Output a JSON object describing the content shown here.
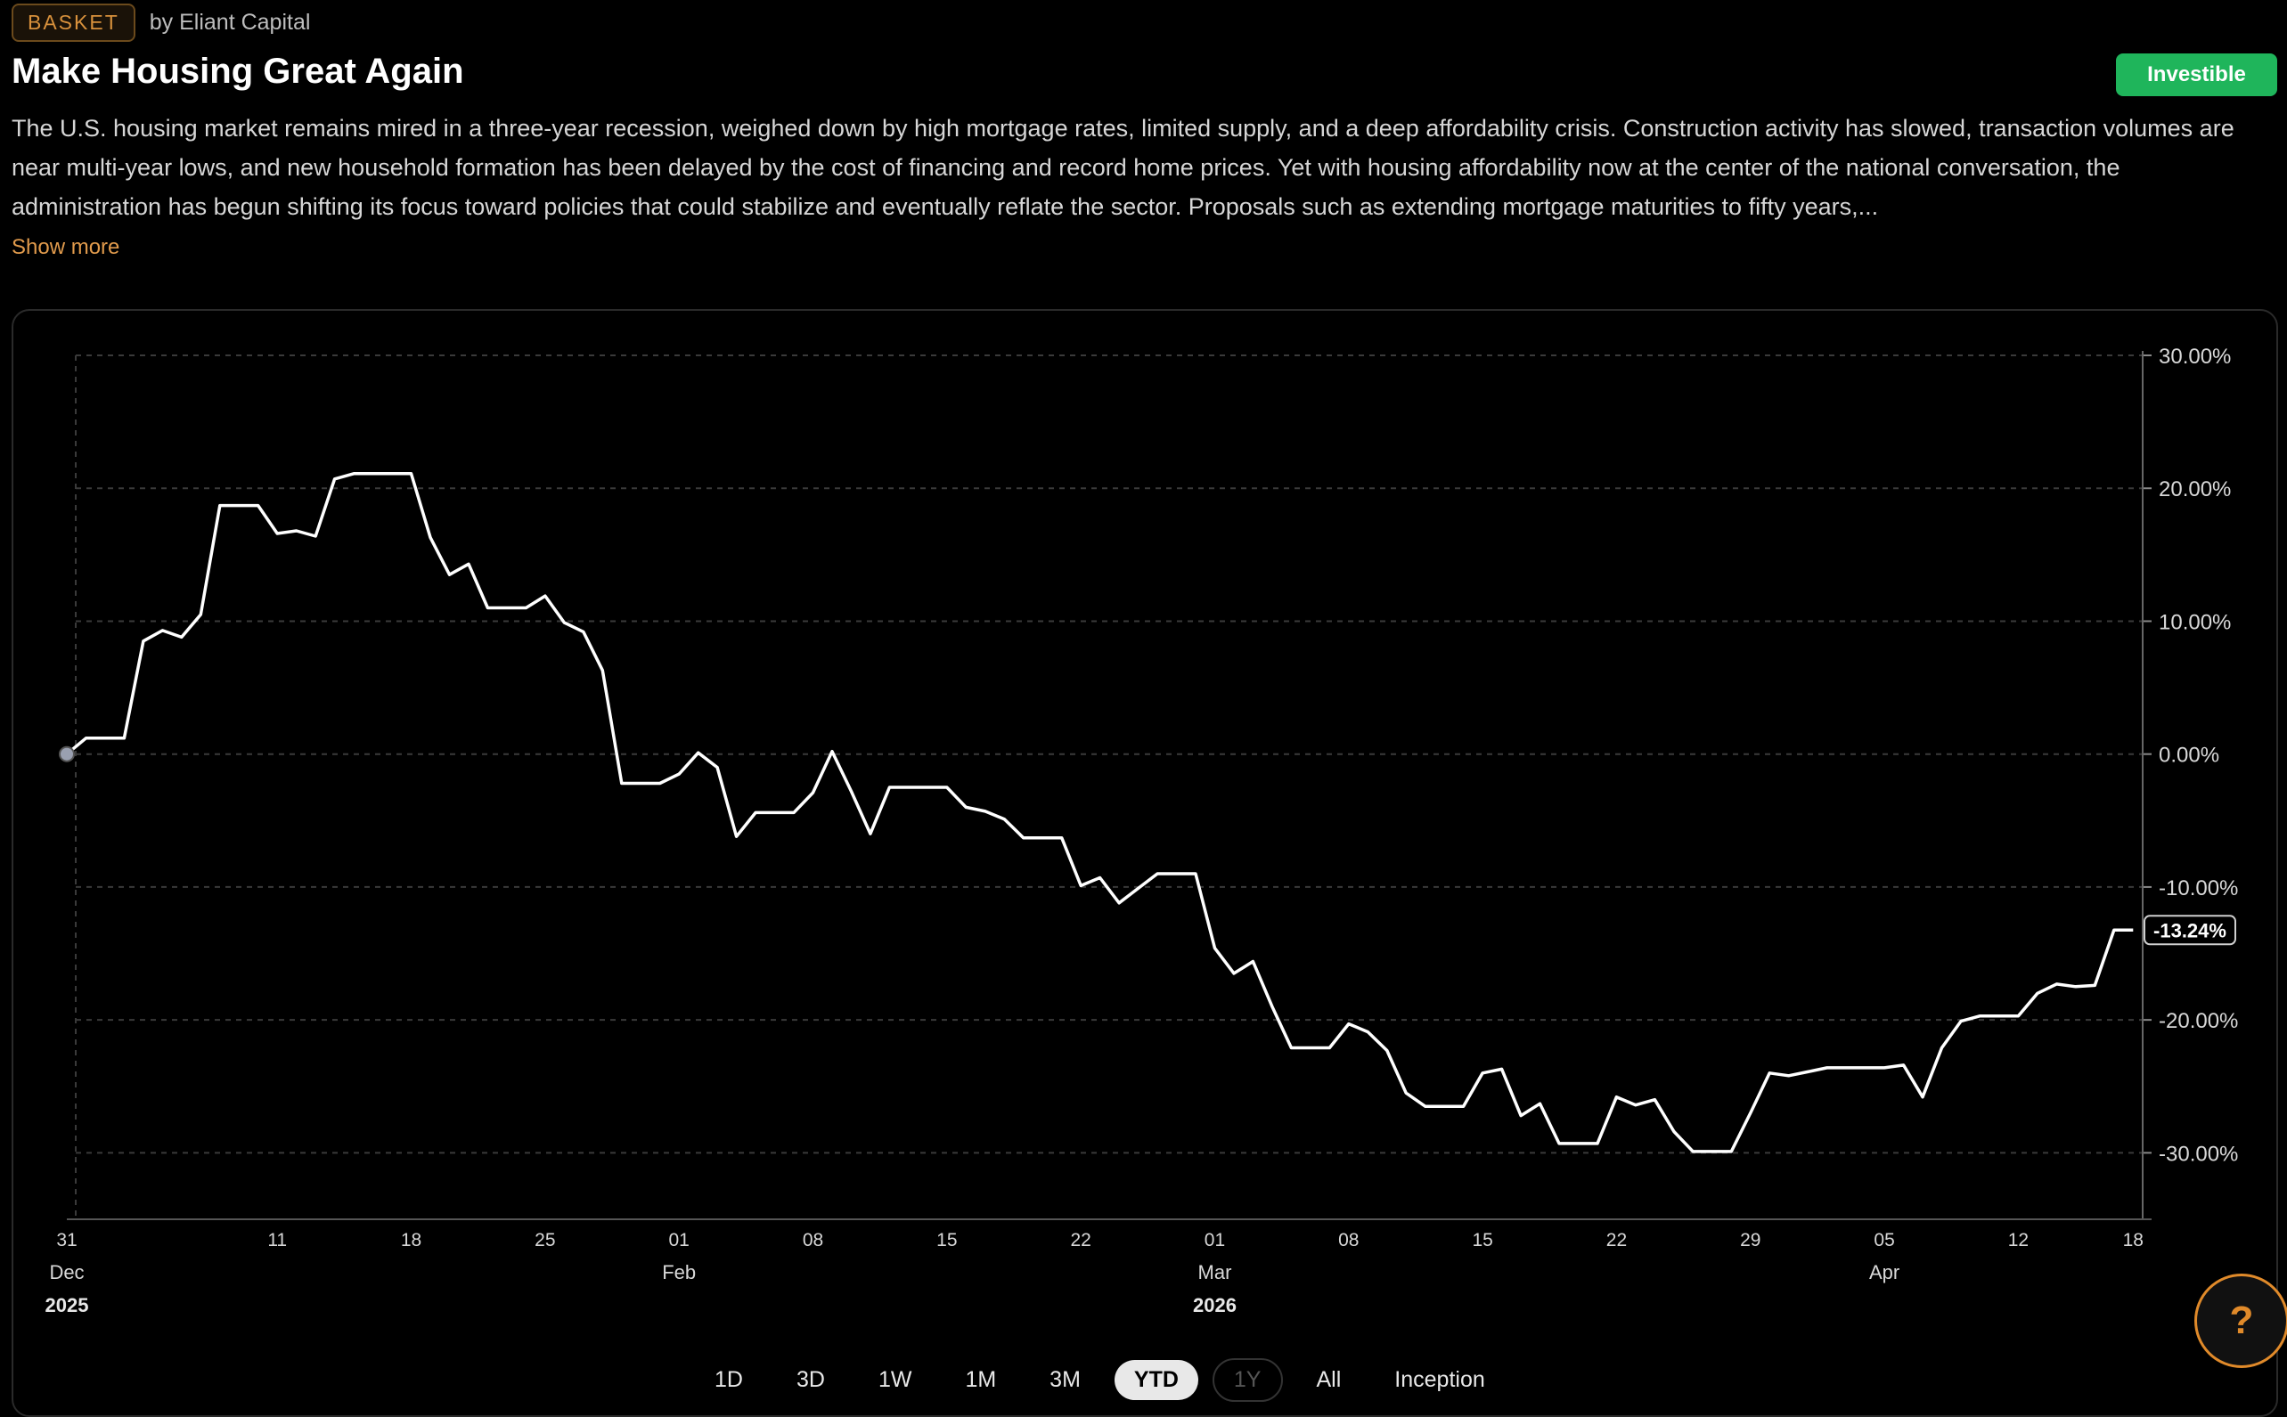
{
  "header": {
    "tag": "BASKET",
    "byline": "by Eliant Capital",
    "title": "Make Housing Great Again",
    "status_button": "Investible",
    "description": "The U.S. housing market remains mired in a three-year recession, weighed down by high mortgage rates, limited supply, and a deep affordability crisis. Construction activity has slowed, transaction volumes are near multi-year lows, and new household formation has been delayed by the cost of financing and record home prices. Yet with housing affordability now at the center of the national conversation, the administration has begun shifting its focus toward policies that could stabilize and eventually reflate the sector. Proposals such as extending mortgage maturities to fifty years,...",
    "show_more": "Show more"
  },
  "range_selector": {
    "options": [
      {
        "label": "1D",
        "state": "normal"
      },
      {
        "label": "3D",
        "state": "normal"
      },
      {
        "label": "1W",
        "state": "normal"
      },
      {
        "label": "1M",
        "state": "normal"
      },
      {
        "label": "3M",
        "state": "normal"
      },
      {
        "label": "YTD",
        "state": "active"
      },
      {
        "label": "1Y",
        "state": "disabled"
      },
      {
        "label": "All",
        "state": "normal"
      },
      {
        "label": "Inception",
        "state": "normal"
      }
    ]
  },
  "help_button": "?",
  "colors": {
    "line": "#ffffff",
    "accent": "#e08a2a",
    "investible": "#1fb55b",
    "grid": "#3a3a3a"
  },
  "chart_data": {
    "type": "line",
    "y_axis_position": "right",
    "y_format": "percent",
    "ylim": [
      -35,
      30
    ],
    "yticks": [
      "30.00%",
      "20.00%",
      "10.00%",
      "0.00%",
      "-10.00%",
      "-20.00%",
      "-30.00%"
    ],
    "ytick_values": [
      30,
      20,
      10,
      0,
      -10,
      -20,
      -30
    ],
    "grid": true,
    "current_value_label": "-13.24%",
    "x_ticks": [
      {
        "day": "31",
        "month": "Dec",
        "year": "2025",
        "day_index": 0
      },
      {
        "day": "11",
        "day_index": 11
      },
      {
        "day": "18",
        "day_index": 18
      },
      {
        "day": "25",
        "day_index": 25
      },
      {
        "day": "01",
        "month": "Feb",
        "day_index": 32
      },
      {
        "day": "08",
        "day_index": 39
      },
      {
        "day": "15",
        "day_index": 46
      },
      {
        "day": "22",
        "day_index": 53
      },
      {
        "day": "01",
        "month": "Mar",
        "year": "2026",
        "day_index": 60
      },
      {
        "day": "08",
        "day_index": 67
      },
      {
        "day": "15",
        "day_index": 74
      },
      {
        "day": "22",
        "day_index": 81
      },
      {
        "day": "29",
        "day_index": 88
      },
      {
        "day": "05",
        "month": "Apr",
        "day_index": 95
      },
      {
        "day": "12",
        "day_index": 102
      },
      {
        "day": "18",
        "day_index": 108
      }
    ],
    "xlim": [
      0,
      108.5
    ],
    "series": [
      {
        "values": [
          [
            0,
            0
          ],
          [
            1,
            1.2
          ],
          [
            2,
            1.2
          ],
          [
            3,
            1.2
          ],
          [
            4,
            8.5
          ],
          [
            5,
            9.3
          ],
          [
            6,
            8.8
          ],
          [
            7,
            10.5
          ],
          [
            8,
            18.7
          ],
          [
            9,
            18.7
          ],
          [
            10,
            18.7
          ],
          [
            11,
            16.6
          ],
          [
            12,
            16.8
          ],
          [
            13,
            16.4
          ],
          [
            14,
            20.7
          ],
          [
            15,
            21.1
          ],
          [
            16,
            21.1
          ],
          [
            17,
            21.1
          ],
          [
            18,
            21.1
          ],
          [
            19,
            16.3
          ],
          [
            20,
            13.5
          ],
          [
            21,
            14.3
          ],
          [
            22,
            11.0
          ],
          [
            23,
            11.0
          ],
          [
            24,
            11.0
          ],
          [
            25,
            11.9
          ],
          [
            26,
            9.9
          ],
          [
            27,
            9.2
          ],
          [
            28,
            6.3
          ],
          [
            29,
            -2.2
          ],
          [
            30,
            -2.2
          ],
          [
            31,
            -2.2
          ],
          [
            32,
            -1.5
          ],
          [
            33,
            0.1
          ],
          [
            34,
            -1.0
          ],
          [
            35,
            -6.2
          ],
          [
            36,
            -4.4
          ],
          [
            37,
            -4.4
          ],
          [
            38,
            -4.4
          ],
          [
            39,
            -2.9
          ],
          [
            40,
            0.2
          ],
          [
            41,
            -2.8
          ],
          [
            42,
            -6.0
          ],
          [
            43,
            -2.5
          ],
          [
            44,
            -2.5
          ],
          [
            45,
            -2.5
          ],
          [
            46,
            -2.5
          ],
          [
            47,
            -4.0
          ],
          [
            48,
            -4.3
          ],
          [
            49,
            -4.9
          ],
          [
            50,
            -6.3
          ],
          [
            51,
            -6.3
          ],
          [
            52,
            -6.3
          ],
          [
            53,
            -9.9
          ],
          [
            54,
            -9.3
          ],
          [
            55,
            -11.2
          ],
          [
            56,
            -10.1
          ],
          [
            57,
            -9.0
          ],
          [
            58,
            -9.0
          ],
          [
            59,
            -9.0
          ],
          [
            60,
            -14.6
          ],
          [
            61,
            -16.5
          ],
          [
            62,
            -15.6
          ],
          [
            63,
            -19.0
          ],
          [
            64,
            -22.1
          ],
          [
            65,
            -22.1
          ],
          [
            66,
            -22.1
          ],
          [
            67,
            -20.3
          ],
          [
            68,
            -20.9
          ],
          [
            69,
            -22.3
          ],
          [
            70,
            -25.5
          ],
          [
            71,
            -26.5
          ],
          [
            72,
            -26.5
          ],
          [
            73,
            -26.5
          ],
          [
            74,
            -24.0
          ],
          [
            75,
            -23.7
          ],
          [
            76,
            -27.2
          ],
          [
            77,
            -26.3
          ],
          [
            78,
            -29.3
          ],
          [
            79,
            -29.3
          ],
          [
            80,
            -29.3
          ],
          [
            81,
            -25.8
          ],
          [
            82,
            -26.4
          ],
          [
            83,
            -26.0
          ],
          [
            84,
            -28.4
          ],
          [
            85,
            -29.9
          ],
          [
            86,
            -29.9
          ],
          [
            87,
            -29.9
          ],
          [
            88,
            -27.0
          ],
          [
            89,
            -24.0
          ],
          [
            90,
            -24.2
          ],
          [
            91,
            -23.9
          ],
          [
            92,
            -23.6
          ],
          [
            93,
            -23.6
          ],
          [
            94,
            -23.6
          ],
          [
            95,
            -23.6
          ],
          [
            96,
            -23.4
          ],
          [
            97,
            -25.8
          ],
          [
            98,
            -22.1
          ],
          [
            99,
            -20.1
          ],
          [
            100,
            -19.7
          ],
          [
            101,
            -19.7
          ],
          [
            102,
            -19.7
          ],
          [
            103,
            -18.0
          ],
          [
            104,
            -17.3
          ],
          [
            105,
            -17.5
          ],
          [
            106,
            -17.4
          ],
          [
            107,
            -13.24
          ],
          [
            108,
            -13.24
          ]
        ]
      }
    ]
  }
}
